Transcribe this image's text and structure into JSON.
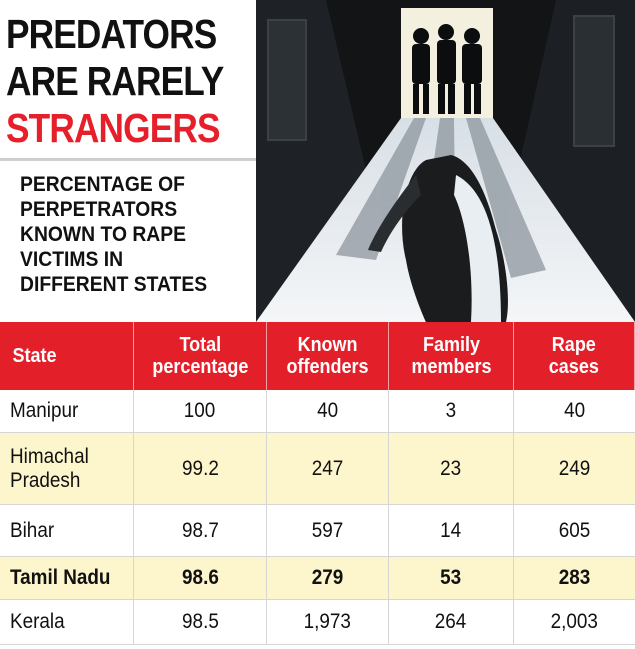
{
  "title": {
    "line1": "PREDATORS",
    "line2": "ARE RARELY",
    "line3": "STRANGERS"
  },
  "subtitle": "PERCENTAGE OF\nPERPETRATORS\nKNOWN TO RAPE\nVICTIMS IN\nDIFFERENT STATES",
  "colors": {
    "accent_red": "#e3202a",
    "highlight_yellow": "#fdf6cc",
    "text": "#111111"
  },
  "chart_data": {
    "type": "table",
    "columns": [
      "State",
      "Total\npercentage",
      "Known\noffenders",
      "Family\nmembers",
      "Rape\ncases"
    ],
    "rows": [
      {
        "state": "Manipur",
        "total_percentage": "100",
        "known_offenders": "40",
        "family_members": "3",
        "rape_cases": "40",
        "highlight": false,
        "bold": false
      },
      {
        "state": "Himachal\nPradesh",
        "total_percentage": "99.2",
        "known_offenders": "247",
        "family_members": "23",
        "rape_cases": "249",
        "highlight": true,
        "bold": false
      },
      {
        "state": "Bihar",
        "total_percentage": "98.7",
        "known_offenders": "597",
        "family_members": "14",
        "rape_cases": "605",
        "highlight": false,
        "bold": false
      },
      {
        "state": "Tamil Nadu",
        "total_percentage": "98.6",
        "known_offenders": "279",
        "family_members": "53",
        "rape_cases": "283",
        "highlight": true,
        "bold": true
      },
      {
        "state": "Kerala",
        "total_percentage": "98.5",
        "known_offenders": "1,973",
        "family_members": "264",
        "rape_cases": "2,003",
        "highlight": false,
        "bold": false
      }
    ]
  }
}
